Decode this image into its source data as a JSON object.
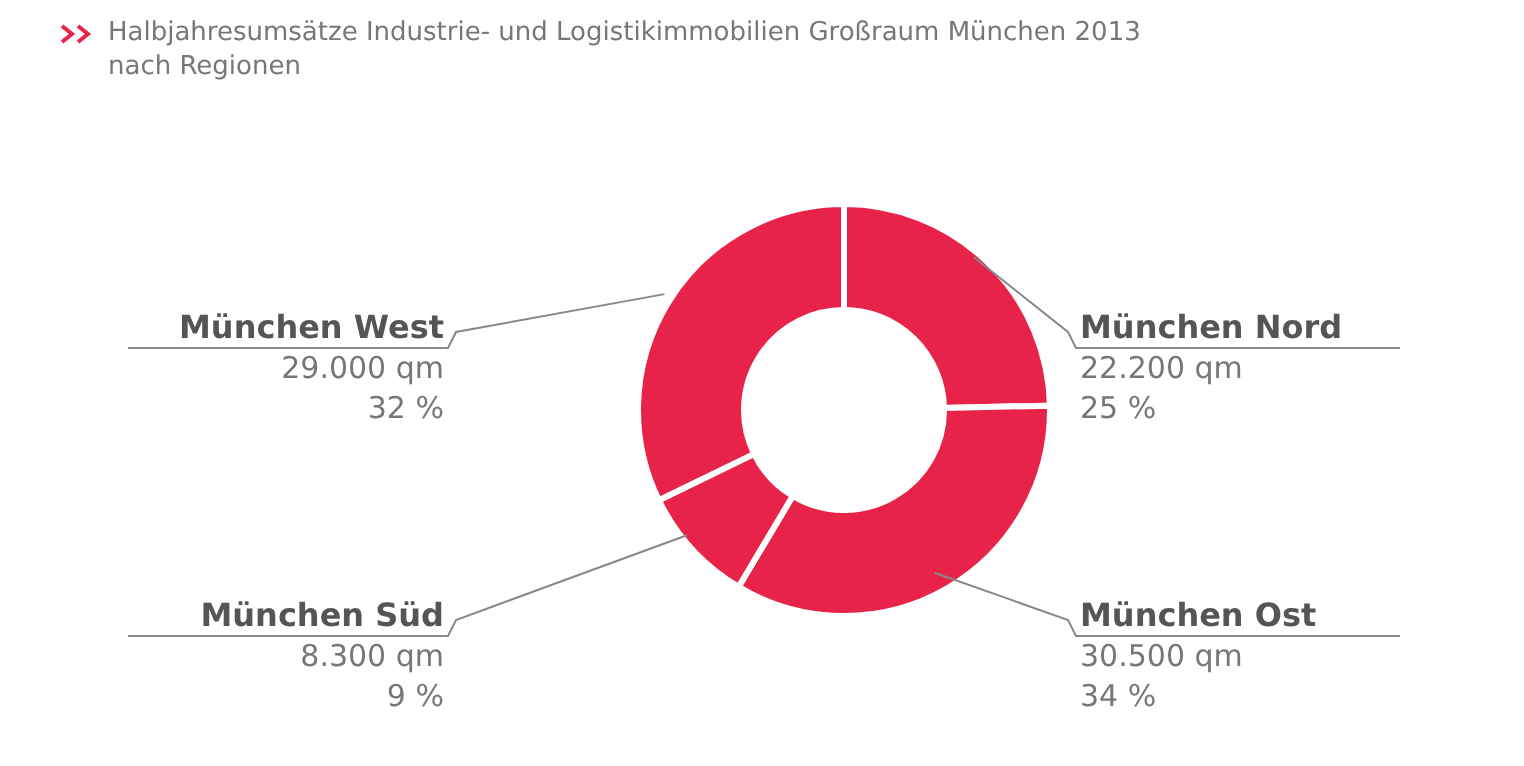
{
  "chart_data": {
    "type": "donut",
    "title": "Halbjahresumsätze Industrie- und Logistikimmobilien Großraum München 2013 nach Regionen",
    "categories": [
      "München Nord",
      "München Ost",
      "München Süd",
      "München West"
    ],
    "values": [
      22200,
      30500,
      8300,
      29000
    ],
    "colors": [
      "#e8234a",
      "#e8234a",
      "#e8234a",
      "#e8234a"
    ],
    "value_labels": [
      "22.200 qm",
      "30.500 qm",
      "8.300 qm",
      "29.000 qm"
    ],
    "annotations": [
      "25 %",
      "34 %",
      "9 %",
      "32 %"
    ],
    "legend": false
  }
}
